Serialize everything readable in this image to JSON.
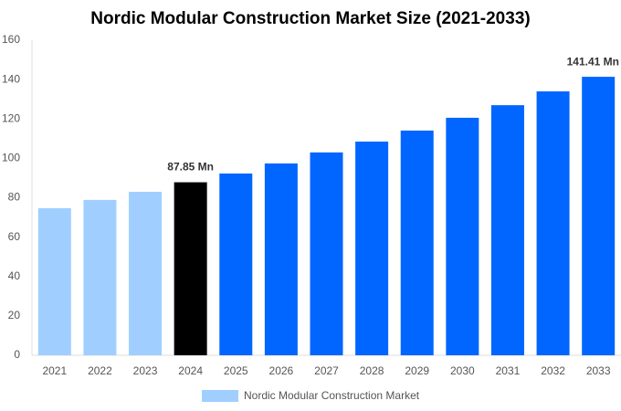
{
  "chart_data": {
    "type": "bar",
    "title": "Nordic Modular Construction Market Size (2021-2033)",
    "categories": [
      "2021",
      "2022",
      "2023",
      "2024",
      "2025",
      "2026",
      "2027",
      "2028",
      "2029",
      "2030",
      "2031",
      "2032",
      "2033"
    ],
    "series": [
      {
        "name": "Nordic Modular Construction Market",
        "color": "#a0cfff",
        "values": [
          74.7,
          78.9,
          83.0,
          87.85,
          92.3,
          97.4,
          103.0,
          108.5,
          114.1,
          120.6,
          127.0,
          134.0,
          141.41
        ],
        "value_labels": [
          null,
          null,
          null,
          "87.85 Mn",
          null,
          null,
          null,
          null,
          null,
          null,
          null,
          null,
          "141.41 Mn"
        ],
        "colors": [
          "#a0cfff",
          "#a0cfff",
          "#a0cfff",
          "#000000",
          "#0066ff",
          "#0066ff",
          "#0066ff",
          "#0066ff",
          "#0066ff",
          "#0066ff",
          "#0066ff",
          "#0066ff",
          "#0066ff"
        ]
      }
    ],
    "ylim": [
      0,
      160
    ],
    "yticks": [
      0,
      20,
      40,
      60,
      80,
      100,
      120,
      140,
      160
    ],
    "grid": false
  }
}
